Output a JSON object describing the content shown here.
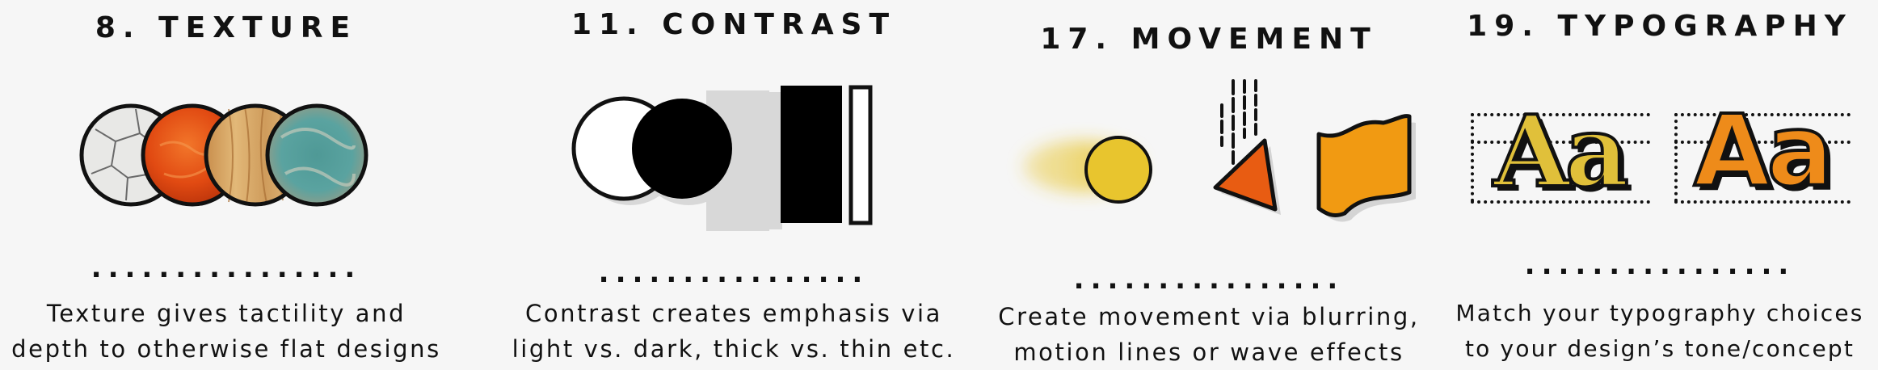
{
  "panels": [
    {
      "title": "8. TEXTURE",
      "dots": "................",
      "line1": "Texture gives tactility and",
      "line2": "depth to otherwise flat designs"
    },
    {
      "title": "11. CONTRAST",
      "dots": "................",
      "line1": "Contrast creates emphasis via",
      "line2": "light vs. dark, thick vs. thin etc."
    },
    {
      "title": "17. MOVEMENT",
      "dots": "................",
      "line1": "Create movement via blurring,",
      "line2": "motion lines or wave effects"
    },
    {
      "title": "19. TYPOGRAPHY",
      "dots": "................",
      "line1": "Match your typography choices",
      "line2": "to your design’s tone/concept",
      "glyph": "Aa"
    }
  ],
  "colors": {
    "background": "#f6f6f6",
    "ink": "#111111",
    "texture_marble": "#e8e8e6",
    "texture_lava": "#e14a12",
    "texture_wood": "#d9ab6a",
    "texture_teal": "#5aa3a0",
    "movement_yellow": "#e8c52e",
    "movement_orange_triangle": "#e85c12",
    "movement_orange_flag": "#f19a12",
    "typo_yellow": "#e0c03a",
    "typo_orange": "#ee8b1a"
  },
  "icons": [
    "marble-texture-circle",
    "lava-texture-circle",
    "wood-texture-circle",
    "teal-texture-circle",
    "white-circle",
    "black-circle",
    "thick-bar",
    "thin-bar",
    "blur-trail",
    "yellow-circle",
    "motion-lines",
    "orange-triangle",
    "wave-flag"
  ]
}
